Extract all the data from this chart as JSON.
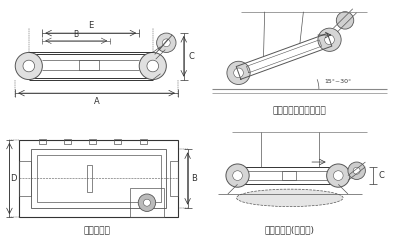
{
  "bg_color": "#ffffff",
  "line_color": "#555555",
  "dark_color": "#333333",
  "label_A": "A",
  "label_B": "B",
  "label_C": "C",
  "label_D": "D",
  "label_E": "E",
  "caption_shape": "外形尺寸图",
  "caption_incline": "安装示意图（倾斜式）",
  "caption_horiz": "安装示意图(水平式)",
  "angle_label": "15°~30°",
  "font_size_label": 6,
  "font_size_caption": 6.5
}
